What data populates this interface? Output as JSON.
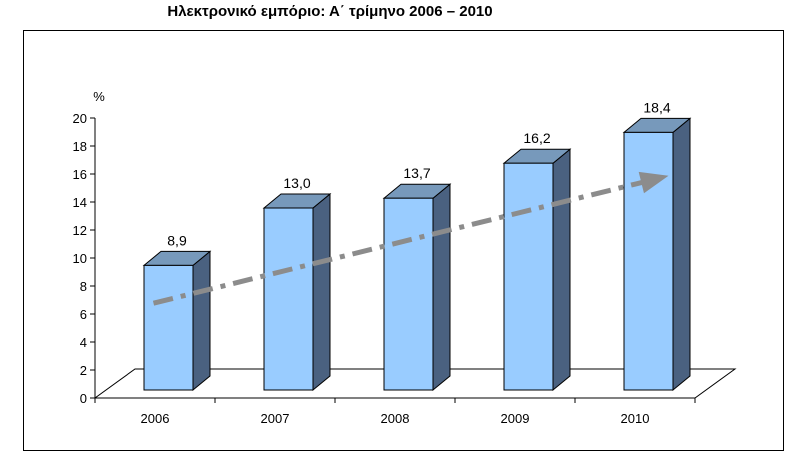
{
  "title": "Ηλεκτρονικό εμπόριο: Α΄ τρίμηνο 2006 – 2010",
  "chart_data": {
    "type": "bar",
    "title": "Ηλεκτρονικό εμπόριο: Α΄ τρίμηνο 2006 – 2010",
    "xlabel": "",
    "ylabel": "%",
    "categories": [
      "2006",
      "2007",
      "2008",
      "2009",
      "2010"
    ],
    "values": [
      8.9,
      13.0,
      13.7,
      16.2,
      18.4
    ],
    "data_labels": [
      "8,9",
      "13,0",
      "13,7",
      "16,2",
      "18,4"
    ],
    "ylim": [
      0,
      20
    ],
    "yticks": [
      0,
      2,
      4,
      6,
      8,
      10,
      12,
      14,
      16,
      18,
      20
    ],
    "grid": false,
    "legend": "none",
    "style": "3d-column",
    "trend_arrow": {
      "from_value": 6.2,
      "to_value": 15.3,
      "color": "#8c8c8c",
      "dash": "dash-dot"
    },
    "colors": {
      "bar_front": "#99ccff",
      "bar_side": "#4a6180",
      "bar_top": "#7799bb",
      "floor": "#ffffff"
    }
  }
}
